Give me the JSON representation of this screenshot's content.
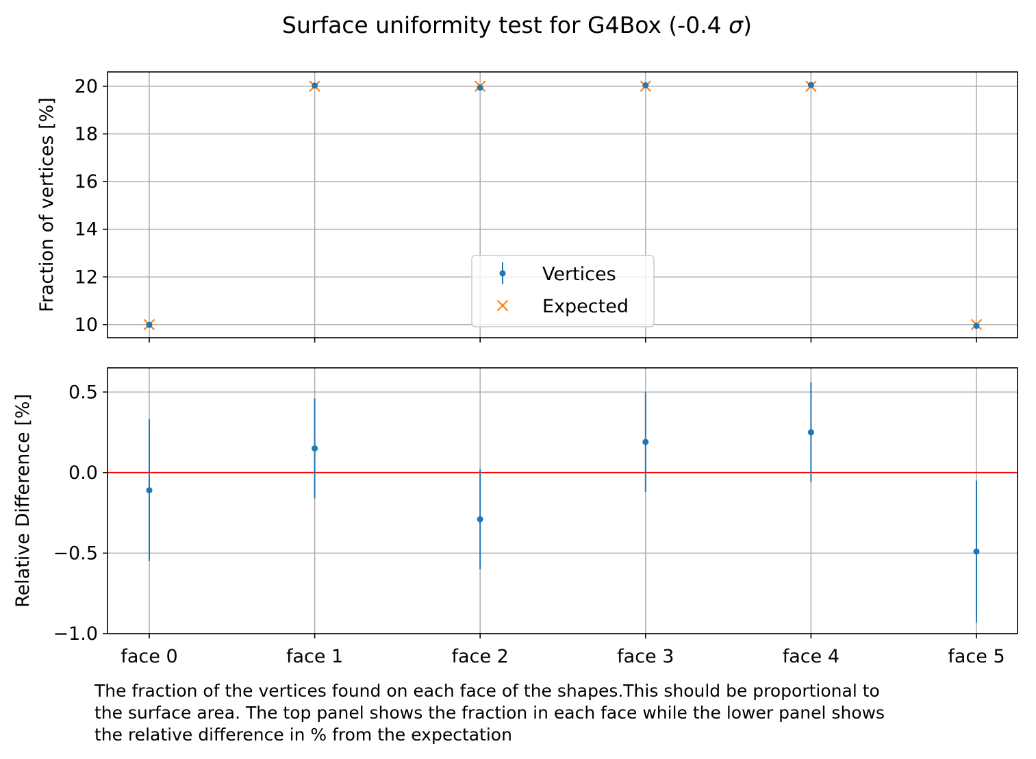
{
  "figure": {
    "title_main": "Surface uniformity test for G4Box (-0.4 ",
    "title_symbol": "σ",
    "title_end": ")",
    "caption_lines": [
      "The fraction of the vertices found on each face of the shapes.This should be proportional to",
      "the surface area. The top panel shows the fraction in each face while the lower panel shows",
      "the relative difference in % from the expectation"
    ]
  },
  "chart_data": [
    {
      "type": "scatter",
      "panel": "top",
      "categories": [
        "face 0",
        "face 1",
        "face 2",
        "face 3",
        "face 4",
        "face 5"
      ],
      "ylabel": "Fraction of vertices [%]",
      "ylim": [
        9.45,
        20.6
      ],
      "yticks": [
        10,
        12,
        14,
        16,
        18,
        20
      ],
      "grid": true,
      "legend": {
        "position": "lower-center",
        "entries": [
          "Vertices",
          "Expected"
        ]
      },
      "series": [
        {
          "name": "Vertices",
          "marker": "point-errorbar",
          "color": "#1f77b4",
          "values": [
            9.99,
            20.03,
            19.94,
            20.04,
            20.05,
            9.95
          ],
          "errors": [
            0.044,
            0.063,
            0.063,
            0.063,
            0.063,
            0.044
          ]
        },
        {
          "name": "Expected",
          "marker": "x",
          "color": "#ff7f0e",
          "values": [
            10,
            20,
            20,
            20,
            20,
            10
          ]
        }
      ]
    },
    {
      "type": "scatter",
      "panel": "bottom",
      "categories": [
        "face 0",
        "face 1",
        "face 2",
        "face 3",
        "face 4",
        "face 5"
      ],
      "ylabel": "Relative Difference [%]",
      "ylim": [
        -1.0,
        0.65
      ],
      "yticks": [
        -1.0,
        -0.5,
        0.0,
        0.5
      ],
      "ytick_labels": [
        "−1.0",
        "−0.5",
        "0.0",
        "0.5"
      ],
      "grid": true,
      "reference_line": {
        "y": 0,
        "color": "#ff0000"
      },
      "series": [
        {
          "name": "Vertices",
          "marker": "point-errorbar",
          "color": "#1f77b4",
          "values": [
            -0.11,
            0.15,
            -0.29,
            0.19,
            0.25,
            -0.49
          ],
          "errors": [
            0.44,
            0.31,
            0.31,
            0.31,
            0.31,
            0.44
          ]
        }
      ]
    }
  ]
}
